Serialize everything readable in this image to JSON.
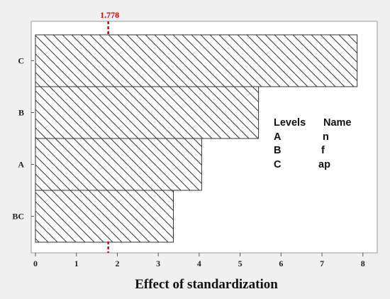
{
  "chart_data": {
    "type": "bar",
    "orientation": "horizontal",
    "categories": [
      "C",
      "B",
      "A",
      "BC"
    ],
    "values": [
      7.86,
      5.45,
      4.06,
      3.37
    ],
    "xlabel": "Effect of standardization",
    "ylabel": "",
    "xlim": [
      0,
      8.35
    ],
    "xticks": [
      "0",
      "1",
      "2",
      "3",
      "4",
      "5",
      "6",
      "7",
      "8"
    ],
    "reference_line": {
      "value": 1.778,
      "label": "1.778",
      "color": "#e00000",
      "style": "dashed"
    },
    "bar_fill": "diagonal-hatch",
    "grid": false,
    "legend": {
      "placement": "right",
      "header": [
        "Levels",
        "Name"
      ],
      "rows": [
        {
          "level": "A",
          "name": "n"
        },
        {
          "level": "B",
          "name": "f"
        },
        {
          "level": "C",
          "name": "ap"
        }
      ]
    }
  }
}
